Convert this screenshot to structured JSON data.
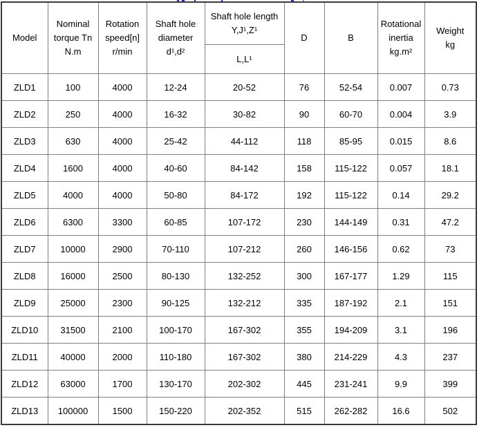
{
  "colors": {
    "background": "#ffffff",
    "outer_border": "#3a3a3a",
    "grid_line": "#7f7f7f",
    "text": "#000000",
    "cut_off_link_blue": "#2222ee"
  },
  "chart_data": {
    "type": "table",
    "headers": {
      "model": "Model",
      "nominal_torque": "Nominal\ntorque Tn\nN.m",
      "rotation_speed": "Rotation\nspeed[n]\nr/min",
      "shaft_hole_diameter": "Shaft hole\ndiameter\nd¹,d²",
      "shaft_hole_length_main": "Shaft hole length\nY,J¹,Z¹",
      "shaft_hole_length_sub": "L,L¹",
      "D": "D",
      "B": "B",
      "rotational_inertia": "Rotational\ninertia\nkg.m²",
      "weight": "Weight\nkg"
    },
    "column_keys": [
      "model",
      "nominal-torque",
      "rotation-speed",
      "shaft-hole-diameter",
      "shaft-hole-length",
      "d",
      "b",
      "rotational-inertia",
      "weight"
    ],
    "rows": [
      [
        "ZLD1",
        "100",
        "4000",
        "12-24",
        "20-52",
        "76",
        "52-54",
        "0.007",
        "0.73"
      ],
      [
        "ZLD2",
        "250",
        "4000",
        "16-32",
        "30-82",
        "90",
        "60-70",
        "0.004",
        "3.9"
      ],
      [
        "ZLD3",
        "630",
        "4000",
        "25-42",
        "44-112",
        "118",
        "85-95",
        "0.015",
        "8.6"
      ],
      [
        "ZLD4",
        "1600",
        "4000",
        "40-60",
        "84-142",
        "158",
        "115-122",
        "0.057",
        "18.1"
      ],
      [
        "ZLD5",
        "4000",
        "4000",
        "50-80",
        "84-172",
        "192",
        "115-122",
        "0.14",
        "29.2"
      ],
      [
        "ZLD6",
        "6300",
        "3300",
        "60-85",
        "107-172",
        "230",
        "144-149",
        "0.31",
        "47.2"
      ],
      [
        "ZLD7",
        "10000",
        "2900",
        "70-110",
        "107-212",
        "260",
        "146-156",
        "0.62",
        "73"
      ],
      [
        "ZLD8",
        "16000",
        "2500",
        "80-130",
        "132-252",
        "300",
        "167-177",
        "1.29",
        "115"
      ],
      [
        "ZLD9",
        "25000",
        "2300",
        "90-125",
        "132-212",
        "335",
        "187-192",
        "2.1",
        "151"
      ],
      [
        "ZLD10",
        "31500",
        "2100",
        "100-170",
        "167-302",
        "355",
        "194-209",
        "3.1",
        "196"
      ],
      [
        "ZLD11",
        "40000",
        "2000",
        "110-180",
        "167-302",
        "380",
        "214-229",
        "4.3",
        "237"
      ],
      [
        "ZLD12",
        "63000",
        "1700",
        "130-170",
        "202-302",
        "445",
        "231-241",
        "9.9",
        "399"
      ],
      [
        "ZLD13",
        "100000",
        "1500",
        "150-220",
        "202-352",
        "515",
        "262-282",
        "16.6",
        "502"
      ]
    ]
  }
}
